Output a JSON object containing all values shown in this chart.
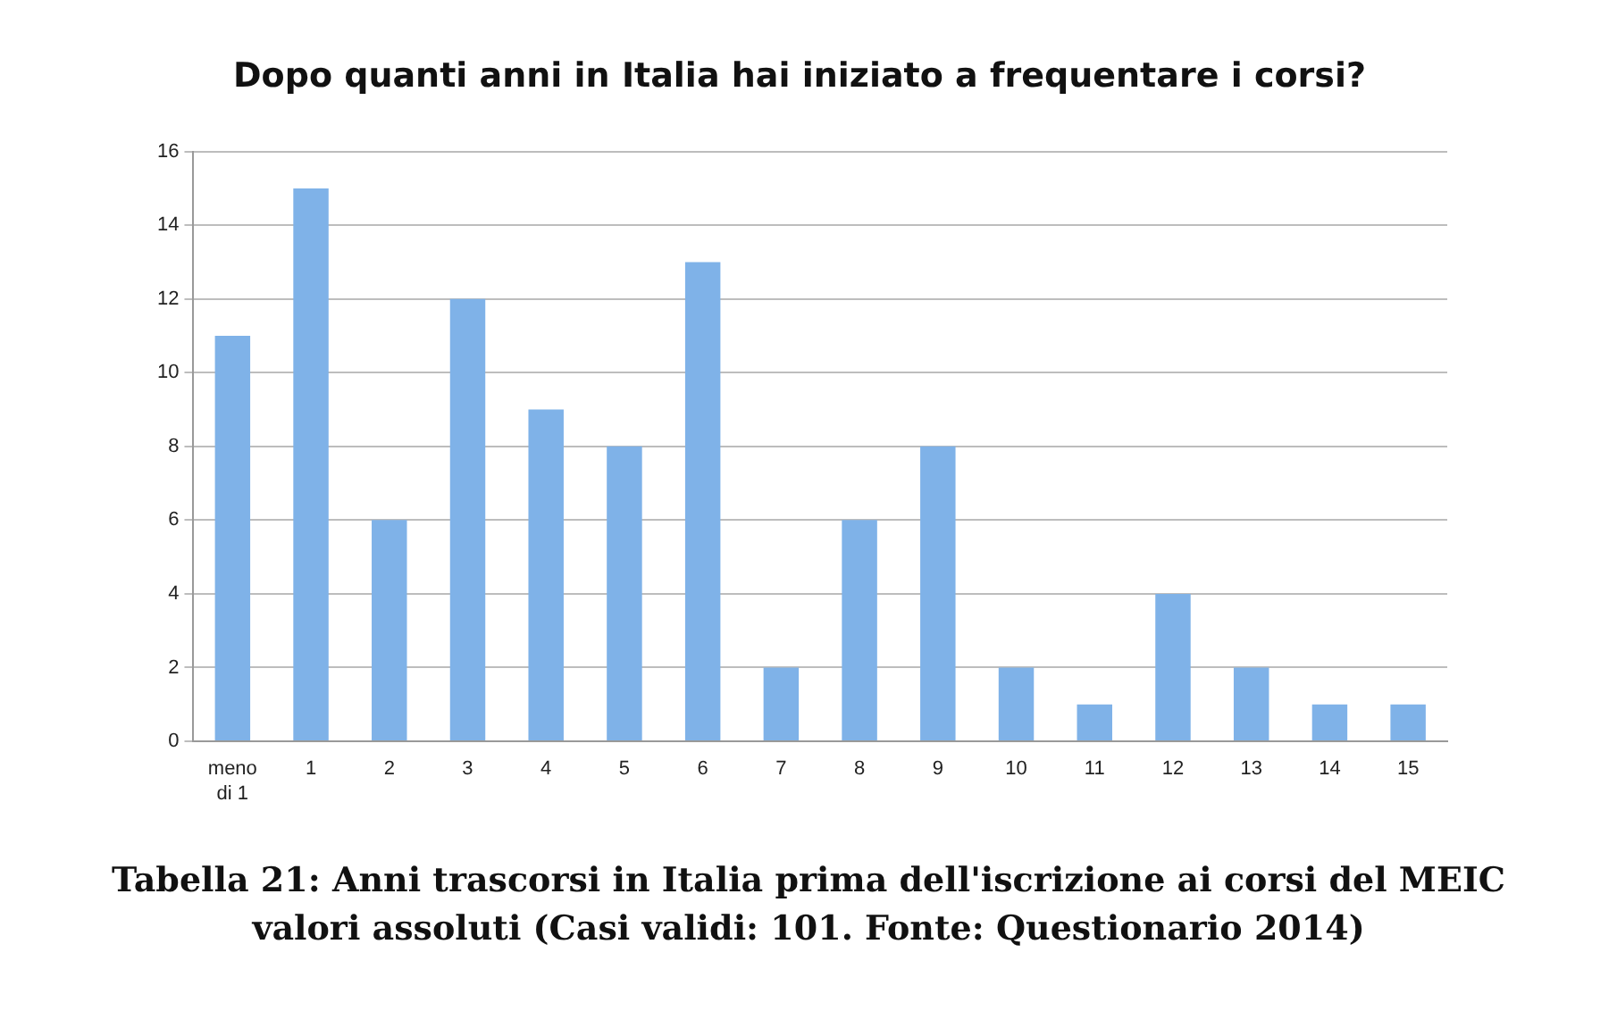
{
  "chart_data": {
    "type": "bar",
    "title": "Dopo quanti anni in Italia hai iniziato a frequentare i corsi?",
    "categories": [
      "meno di 1",
      "1",
      "2",
      "3",
      "4",
      "5",
      "6",
      "7",
      "8",
      "9",
      "10",
      "11",
      "12",
      "13",
      "14",
      "15"
    ],
    "values": [
      11,
      15,
      6,
      12,
      9,
      8,
      13,
      2,
      6,
      8,
      2,
      1,
      4,
      2,
      1,
      1
    ],
    "color": "#7fb2e8",
    "ylim": [
      0,
      16
    ],
    "yticks": [
      0,
      2,
      4,
      6,
      8,
      10,
      12,
      14,
      16
    ],
    "grid": "y",
    "legend": false,
    "annotations": [
      "Tabella 21: Anni trascorsi in Italia prima dell'iscrizione ai corsi del MEIC",
      "valori assoluti (Casi validi: 101. Fonte: Questionario 2014)"
    ]
  }
}
